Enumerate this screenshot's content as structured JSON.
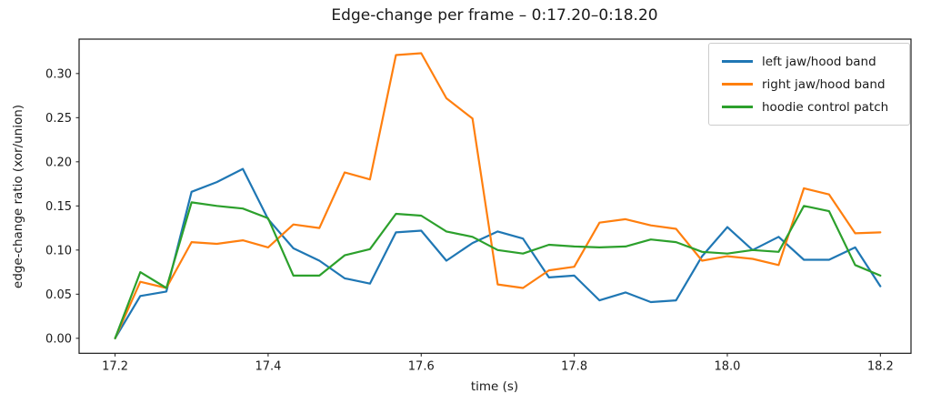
{
  "chart_data": {
    "type": "line",
    "title": "Edge-change per frame – 0:17.20–0:18.20",
    "xlabel": "time (s)",
    "ylabel": "edge-change ratio (xor/union)",
    "grid": false,
    "legend_position": "upper right",
    "xlim": [
      17.153,
      18.24
    ],
    "ylim": [
      -0.017,
      0.339
    ],
    "x_ticks": [
      17.2,
      17.4,
      17.6,
      17.8,
      18.0,
      18.2
    ],
    "x_tick_labels": [
      "17.2",
      "17.4",
      "17.6",
      "17.8",
      "18.0",
      "18.2"
    ],
    "y_ticks": [
      0.0,
      0.05,
      0.1,
      0.15,
      0.2,
      0.25,
      0.3
    ],
    "y_tick_labels": [
      "0.00",
      "0.05",
      "0.10",
      "0.15",
      "0.20",
      "0.25",
      "0.30"
    ],
    "x": [
      17.2,
      17.233,
      17.267,
      17.3,
      17.333,
      17.367,
      17.4,
      17.433,
      17.467,
      17.5,
      17.533,
      17.567,
      17.6,
      17.633,
      17.667,
      17.7,
      17.733,
      17.767,
      17.8,
      17.833,
      17.867,
      17.9,
      17.933,
      17.967,
      18.0,
      18.033,
      18.067,
      18.1,
      18.133,
      18.167,
      18.2
    ],
    "series": [
      {
        "name": "left jaw/hood band",
        "color": "#1f77b4",
        "values": [
          0.0,
          0.048,
          0.053,
          0.166,
          0.177,
          0.192,
          0.135,
          0.102,
          0.088,
          0.068,
          0.062,
          0.12,
          0.122,
          0.088,
          0.108,
          0.121,
          0.113,
          0.069,
          0.071,
          0.043,
          0.052,
          0.041,
          0.043,
          0.093,
          0.126,
          0.1,
          0.115,
          0.089,
          0.089,
          0.103,
          0.059
        ]
      },
      {
        "name": "right jaw/hood band",
        "color": "#ff7f0e",
        "values": [
          0.0,
          0.064,
          0.057,
          0.109,
          0.107,
          0.111,
          0.103,
          0.129,
          0.125,
          0.188,
          0.18,
          0.321,
          0.323,
          0.272,
          0.249,
          0.061,
          0.057,
          0.077,
          0.081,
          0.131,
          0.135,
          0.128,
          0.124,
          0.088,
          0.093,
          0.09,
          0.083,
          0.17,
          0.163,
          0.119,
          0.12
        ]
      },
      {
        "name": "hoodie control patch",
        "color": "#2ca02c",
        "values": [
          0.0,
          0.075,
          0.057,
          0.154,
          0.15,
          0.147,
          0.136,
          0.071,
          0.071,
          0.094,
          0.101,
          0.141,
          0.139,
          0.121,
          0.115,
          0.1,
          0.096,
          0.106,
          0.104,
          0.103,
          0.104,
          0.112,
          0.109,
          0.098,
          0.096,
          0.1,
          0.098,
          0.15,
          0.144,
          0.083,
          0.071
        ]
      }
    ]
  }
}
